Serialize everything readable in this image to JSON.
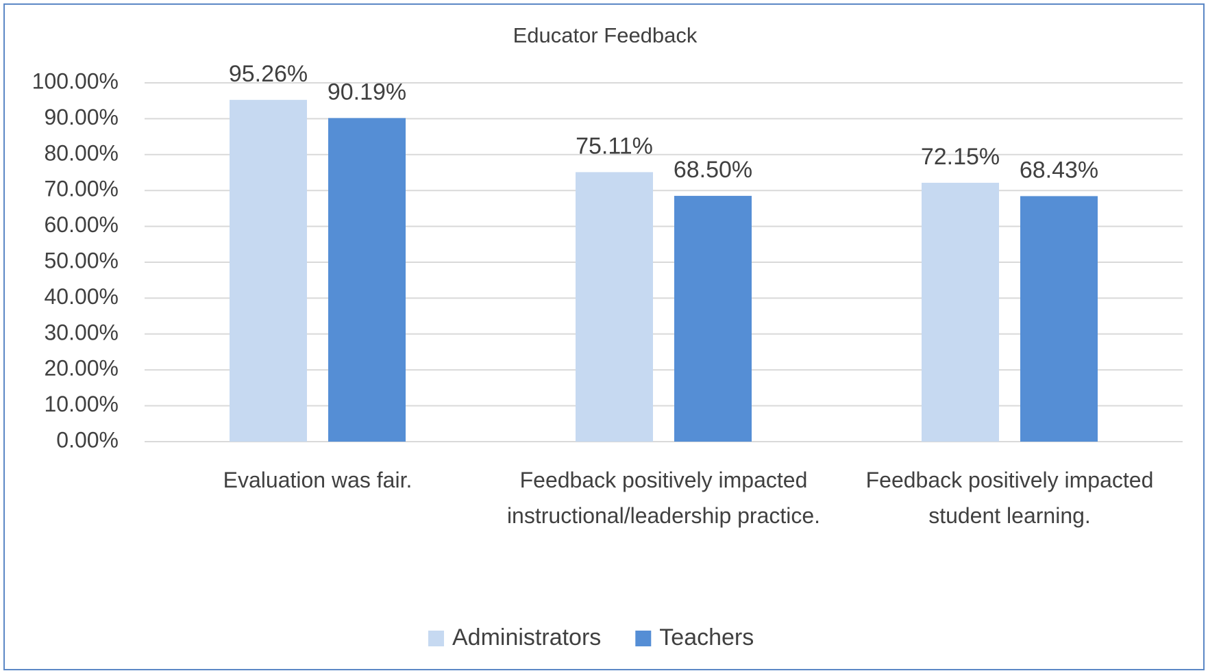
{
  "chart_data": {
    "type": "bar",
    "title": "Educator Feedback",
    "categories": [
      "Evaluation was fair.",
      "Feedback positively impacted instructional/leadership practice.",
      "Feedback positively impacted student learning."
    ],
    "series": [
      {
        "name": "Administrators",
        "color": "#c6d9f1",
        "values": [
          95.26,
          75.11,
          72.15
        ],
        "value_labels": [
          "95.26%",
          "75.11%",
          "72.15%"
        ]
      },
      {
        "name": "Teachers",
        "color": "#558ed5",
        "values": [
          90.19,
          68.5,
          68.43
        ],
        "value_labels": [
          "90.19%",
          "68.50%",
          "68.43%"
        ]
      }
    ],
    "ylim": [
      0,
      100
    ],
    "yticks": [
      {
        "value": 0,
        "label": "0.00%"
      },
      {
        "value": 10,
        "label": "10.00%"
      },
      {
        "value": 20,
        "label": "20.00%"
      },
      {
        "value": 30,
        "label": "30.00%"
      },
      {
        "value": 40,
        "label": "40.00%"
      },
      {
        "value": 50,
        "label": "50.00%"
      },
      {
        "value": 60,
        "label": "60.00%"
      },
      {
        "value": 70,
        "label": "70.00%"
      },
      {
        "value": 80,
        "label": "80.00%"
      },
      {
        "value": 90,
        "label": "90.00%"
      },
      {
        "value": 100,
        "label": "100.00%"
      }
    ],
    "grid": true,
    "legend": "bottom"
  }
}
